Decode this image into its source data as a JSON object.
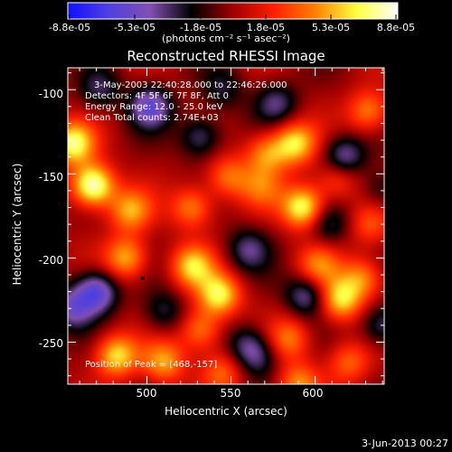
{
  "colorbar": {
    "tick_labels": [
      "-8.8e-05",
      "-5.3e-05",
      "-1.8e-05",
      "1.8e-05",
      "5.3e-05",
      "8.8e-05"
    ],
    "units_label": "(photons cm⁻² s⁻¹ asec⁻²)",
    "colors": [
      "#1010ff",
      "#5040e0",
      "#8050b0",
      "#000000",
      "#a00000",
      "#ff2000",
      "#ff8000",
      "#ffff40",
      "#ffffff"
    ]
  },
  "plot": {
    "title": "Reconstructed RHESSI Image",
    "info_lines": [
      "3-May-2003 22:40:28.000 to 22:46:26.000",
      "Detectors: 4F 5F 6F 7F 8F, Att 0",
      "Energy Range: 12.0 - 25.0 keV",
      "Clean    Total counts: 2.74E+03"
    ],
    "peak_label": "Position of Peak = [468,-157]"
  },
  "footer": {
    "date": "3-Jun-2013 00:27"
  },
  "chart_data": {
    "type": "heatmap",
    "title": "Reconstructed RHESSI Image",
    "xlabel": "Heliocentric X (arcsec)",
    "ylabel": "Heliocentric Y (arcsec)",
    "xlim": [
      453,
      641
    ],
    "ylim": [
      -275,
      -87
    ],
    "x_ticks": [
      "500",
      "550",
      "600"
    ],
    "y_ticks": [
      "-100",
      "-150",
      "-200",
      "-250"
    ],
    "colorbar_range": [
      -8.8e-05,
      8.8e-05
    ],
    "peak_position": [
      468,
      -157
    ],
    "blobs": [
      {
        "x": 468,
        "y": -157,
        "v": 1.0
      },
      {
        "x": 456,
        "y": -132,
        "v": 0.8
      },
      {
        "x": 490,
        "y": -172,
        "v": 0.55
      },
      {
        "x": 488,
        "y": -200,
        "v": 0.6
      },
      {
        "x": 527,
        "y": -205,
        "v": 0.65
      },
      {
        "x": 543,
        "y": -222,
        "v": 0.75
      },
      {
        "x": 532,
        "y": -243,
        "v": 0.5
      },
      {
        "x": 482,
        "y": -258,
        "v": 0.7
      },
      {
        "x": 510,
        "y": -262,
        "v": 0.55
      },
      {
        "x": 545,
        "y": -268,
        "v": 0.4
      },
      {
        "x": 527,
        "y": -170,
        "v": 0.5
      },
      {
        "x": 548,
        "y": -152,
        "v": 0.45
      },
      {
        "x": 571,
        "y": -138,
        "v": 0.5
      },
      {
        "x": 588,
        "y": -132,
        "v": 0.7
      },
      {
        "x": 593,
        "y": -170,
        "v": 0.85
      },
      {
        "x": 568,
        "y": -158,
        "v": 0.35
      },
      {
        "x": 613,
        "y": -153,
        "v": 0.4
      },
      {
        "x": 632,
        "y": -113,
        "v": 0.5
      },
      {
        "x": 602,
        "y": -205,
        "v": 0.45
      },
      {
        "x": 615,
        "y": -225,
        "v": 0.7
      },
      {
        "x": 628,
        "y": -212,
        "v": 0.5
      },
      {
        "x": 585,
        "y": -248,
        "v": 0.45
      },
      {
        "x": 590,
        "y": -275,
        "v": 0.5
      },
      {
        "x": 620,
        "y": -262,
        "v": 0.4
      },
      {
        "x": 633,
        "y": -180,
        "v": 0.35
      },
      {
        "x": 470,
        "y": -220,
        "v": -0.7
      },
      {
        "x": 455,
        "y": -230,
        "v": -0.5
      },
      {
        "x": 502,
        "y": -110,
        "v": -0.6
      },
      {
        "x": 532,
        "y": -128,
        "v": -0.45
      },
      {
        "x": 617,
        "y": -140,
        "v": -0.55
      },
      {
        "x": 577,
        "y": -108,
        "v": -0.4
      },
      {
        "x": 595,
        "y": -222,
        "v": -0.5
      },
      {
        "x": 560,
        "y": -195,
        "v": -0.4
      },
      {
        "x": 640,
        "y": -240,
        "v": -0.45
      },
      {
        "x": 510,
        "y": -232,
        "v": -0.35
      },
      {
        "x": 560,
        "y": -252,
        "v": -0.4
      },
      {
        "x": 608,
        "y": -180,
        "v": -0.35
      },
      {
        "x": 545,
        "y": -100,
        "v": -0.3
      },
      {
        "x": 640,
        "y": -160,
        "v": -0.3
      },
      {
        "x": 472,
        "y": -100,
        "v": -0.35
      },
      {
        "x": 567,
        "y": -260,
        "v": -0.3
      }
    ]
  }
}
